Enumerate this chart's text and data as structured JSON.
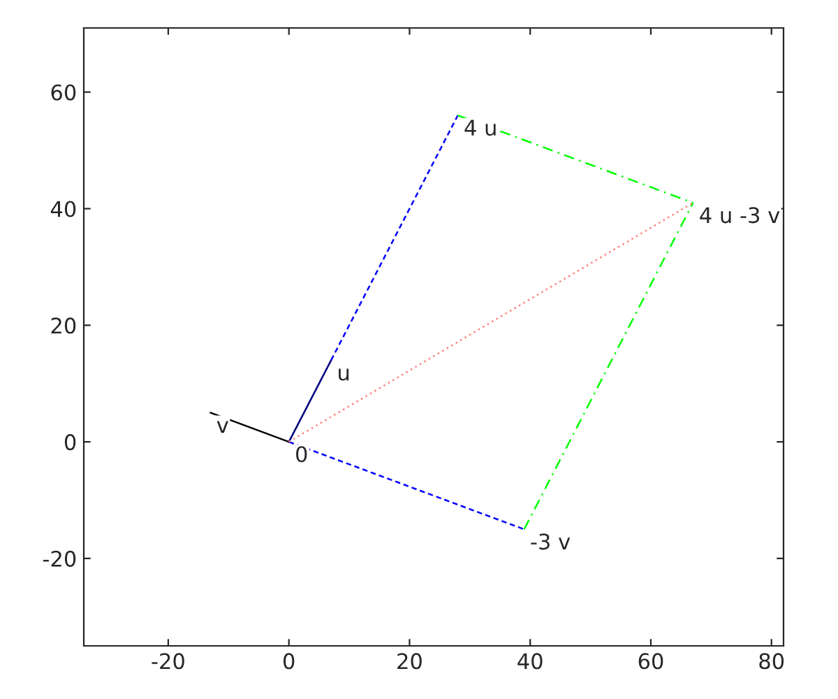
{
  "chart_data": {
    "type": "line",
    "xlim": [
      -34,
      82
    ],
    "ylim": [
      -35,
      71
    ],
    "xticks": [
      -20,
      0,
      20,
      40,
      60,
      80
    ],
    "yticks": [
      -20,
      0,
      20,
      40,
      60
    ],
    "grid": false,
    "legend": false,
    "series": [
      {
        "x": [
          0,
          7
        ],
        "values": [
          0,
          14
        ],
        "color": "#000080",
        "line_style": "solid"
      },
      {
        "x": [
          0,
          -13
        ],
        "values": [
          0,
          5
        ],
        "color": "#000000",
        "line_style": "solid"
      },
      {
        "x": [
          7,
          28
        ],
        "values": [
          14,
          56
        ],
        "color": "#0000ff",
        "line_style": "dashed"
      },
      {
        "x": [
          0,
          39
        ],
        "values": [
          0,
          -15
        ],
        "color": "#0000ff",
        "line_style": "dashed"
      },
      {
        "x": [
          28,
          67
        ],
        "values": [
          56,
          41
        ],
        "color": "#00ff00",
        "line_style": "dashdot"
      },
      {
        "x": [
          39,
          67
        ],
        "values": [
          -15,
          41
        ],
        "color": "#00ff00",
        "line_style": "dashdot"
      },
      {
        "x": [
          0,
          67
        ],
        "values": [
          0,
          41
        ],
        "color": "#ff8080",
        "line_style": "dotted"
      }
    ],
    "annotations": [
      {
        "text": "u",
        "x": 7,
        "y": 14
      },
      {
        "text": "v",
        "x": -13,
        "y": 5
      },
      {
        "text": "0",
        "x": 0,
        "y": 0
      },
      {
        "text": "4 u",
        "x": 28,
        "y": 56
      },
      {
        "text": "-3 v",
        "x": 39,
        "y": -15
      },
      {
        "text": "4 u -3 v",
        "x": 67,
        "y": 41
      }
    ]
  }
}
